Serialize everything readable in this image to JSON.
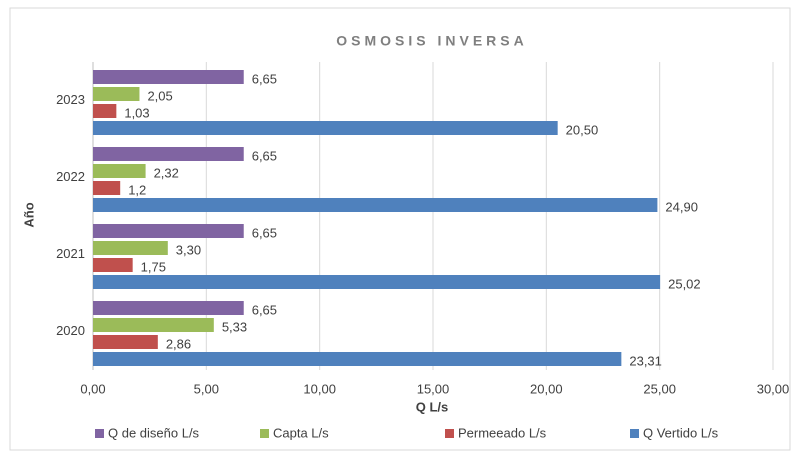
{
  "chart_data": {
    "type": "hbar",
    "title": "OSMOSIS INVERSA",
    "x_label": "Q L/s",
    "y_label": "Año",
    "categories": [
      "2020",
      "2021",
      "2022",
      "2023"
    ],
    "series": [
      {
        "name": "Q de diseño L/s",
        "color": "#8064a2",
        "values": [
          6.65,
          6.65,
          6.65,
          6.65
        ],
        "value_labels": [
          "6,65",
          "6,65",
          "6,65",
          "6,65"
        ]
      },
      {
        "name": "Capta L/s",
        "color": "#9bbb59",
        "values": [
          5.33,
          3.3,
          2.32,
          2.05
        ],
        "value_labels": [
          "5,33",
          "3,30",
          "2,32",
          "2,05"
        ]
      },
      {
        "name": "Permeeado L/s",
        "color": "#c0504d",
        "values": [
          2.86,
          1.75,
          1.2,
          1.03
        ],
        "value_labels": [
          "2,86",
          "1,75",
          "1,2",
          "1,03"
        ]
      },
      {
        "name": "Q Vertido L/s",
        "color": "#4f81bd",
        "values": [
          23.31,
          25.02,
          24.9,
          20.5
        ],
        "value_labels": [
          "23,31",
          "25,02",
          "24,90",
          "20,50"
        ]
      }
    ],
    "xlim": [
      0,
      30
    ],
    "xticks": [
      {
        "value": 0,
        "label": "0,00"
      },
      {
        "value": 5,
        "label": "5,00"
      },
      {
        "value": 10,
        "label": "10,00"
      },
      {
        "value": 15,
        "label": "15,00"
      },
      {
        "value": 20,
        "label": "20,00"
      },
      {
        "value": 25,
        "label": "25,00"
      },
      {
        "value": 30,
        "label": "30,00"
      }
    ],
    "grid": true,
    "legend": "bottom"
  }
}
